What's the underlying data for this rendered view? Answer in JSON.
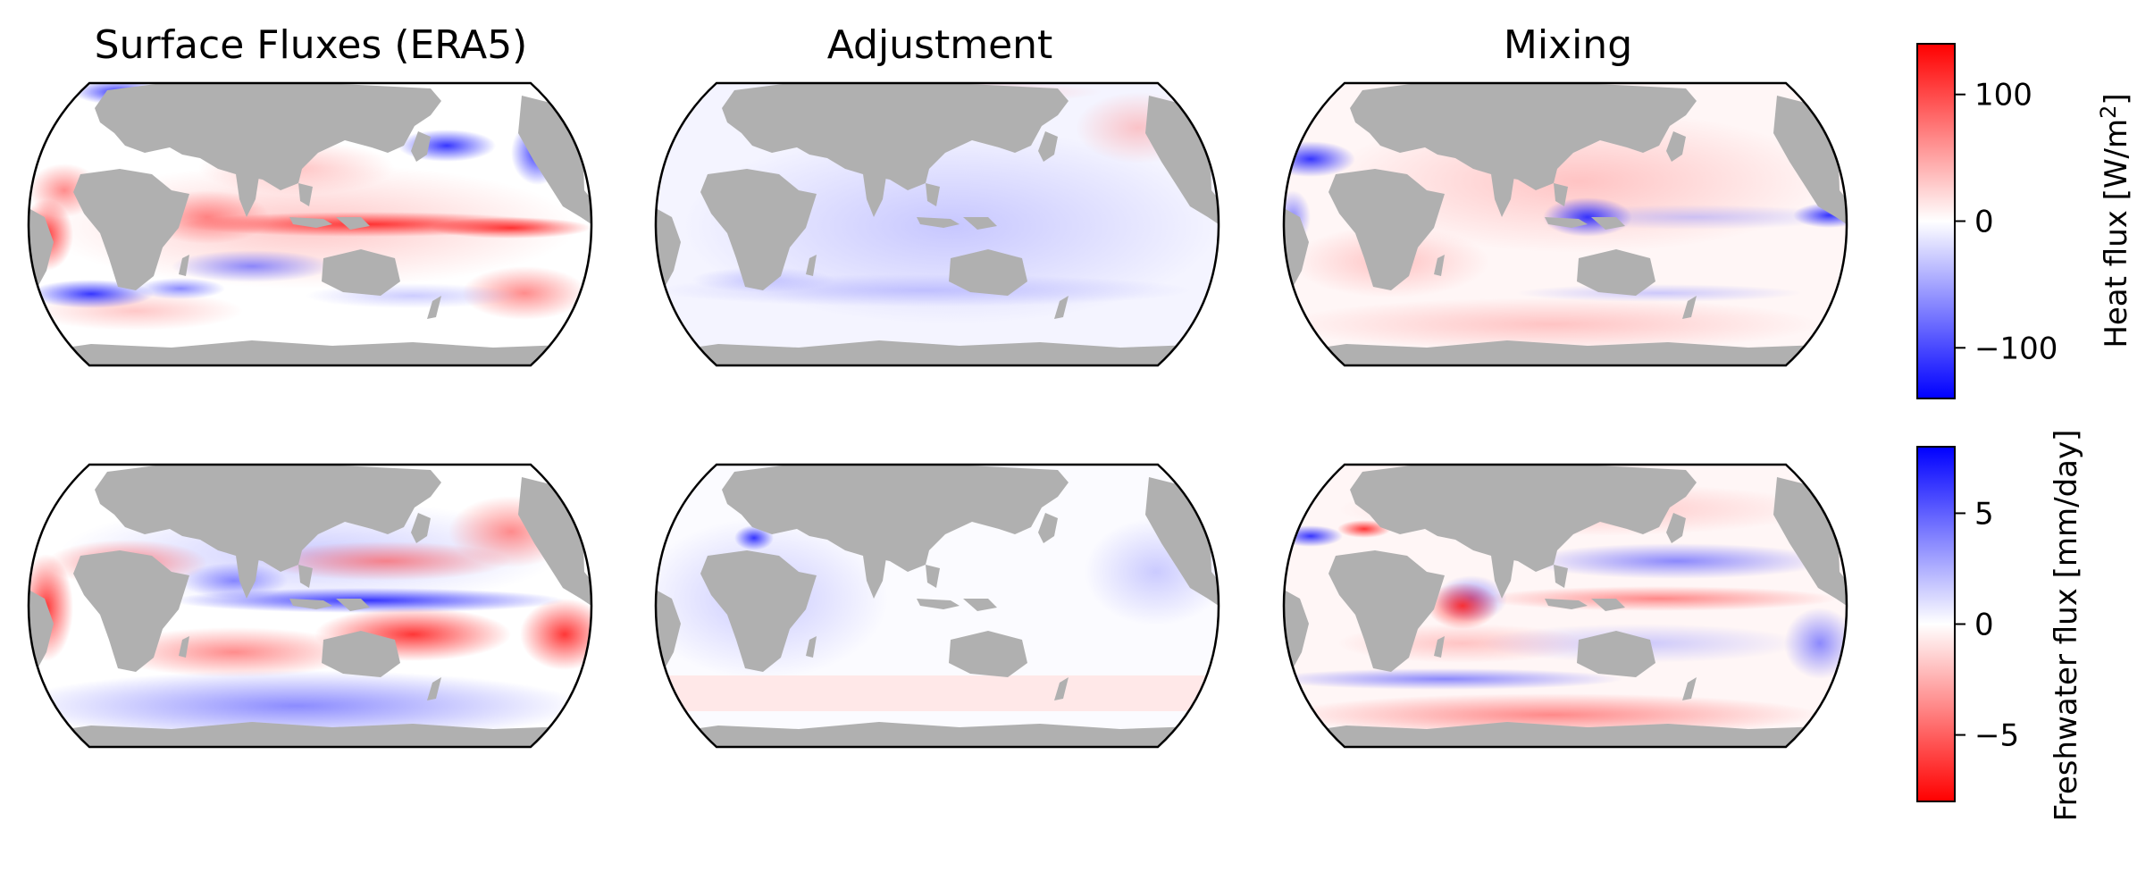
{
  "figure": {
    "column_titles": [
      "Surface Fluxes (ERA5)",
      "Adjustment",
      "Mixing"
    ],
    "rows": [
      {
        "variable": "heat",
        "panels": [
          {
            "column": "Surface Fluxes (ERA5)",
            "pattern": "strong equatorial Pacific warming band, cooling over western boundary currents (Gulf Stream, Kuroshio) and Southern Ocean fronts"
          },
          {
            "column": "Adjustment",
            "pattern": "weak, mostly slightly negative; mild positive in North Atlantic"
          },
          {
            "column": "Mixing",
            "pattern": "weak positive over most of ocean, negative in Indonesian seas, Mediterranean and eastern equatorial Pacific"
          }
        ]
      },
      {
        "variable": "freshwater",
        "panels": [
          {
            "column": "Surface Fluxes (ERA5)",
            "pattern": "positive (blue) along ITCZ and South Pacific convergence zone, negative (red) over subtropical gyres"
          },
          {
            "column": "Adjustment",
            "pattern": "near zero, small positive Mediterranean signal"
          },
          {
            "column": "Mixing",
            "pattern": "negative in Indonesian seas, Red Sea and Mediterranean; alternating bands elsewhere"
          }
        ]
      }
    ],
    "colorbars": [
      {
        "label_main": "Heat flux [W/m",
        "label_sup": "2",
        "label_end": "]",
        "vmin": -140,
        "vmax": 140,
        "ticks": [
          {
            "value": 100,
            "text": "100"
          },
          {
            "value": 0,
            "text": "0"
          },
          {
            "value": -100,
            "text": "−100"
          }
        ],
        "colormap": "bwr",
        "low_color": "#0000ff",
        "mid_color": "#ffffff",
        "high_color": "#ff0000"
      },
      {
        "label_main": "Freshwater flux [mm/day]",
        "vmin": -8,
        "vmax": 8,
        "ticks": [
          {
            "value": 5,
            "text": "5"
          },
          {
            "value": 0,
            "text": "0"
          },
          {
            "value": -5,
            "text": "−5"
          }
        ],
        "colormap": "bwr_r",
        "low_color": "#ff0000",
        "mid_color": "#ffffff",
        "high_color": "#0000ff"
      }
    ],
    "land_color": "#b0b0b0",
    "outline_color": "#000000"
  }
}
